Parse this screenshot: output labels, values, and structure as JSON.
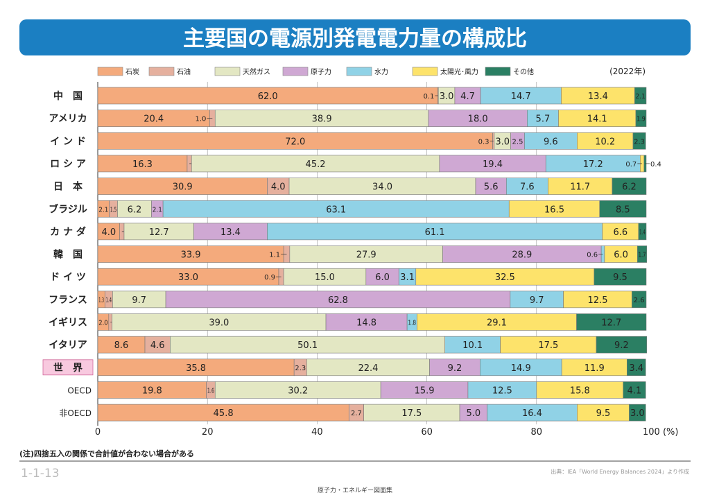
{
  "title": "主要国の電源別発電電力量の構成比",
  "year_label": "(2022年)",
  "note": "(注)四捨五入の関係で合計値が合わない場合がある",
  "figure_number": "1-1-13",
  "source": "出典：IEA「World Energy Balances 2024」より作成",
  "footer": "原子力・エネルギー図面集",
  "chart_data": {
    "type": "bar",
    "orientation": "horizontal",
    "stacked": true,
    "xlim": [
      0,
      100
    ],
    "x_ticks": [
      "0",
      "20",
      "40",
      "60",
      "80",
      "100 (%)"
    ],
    "grid": true,
    "legend_position": "top",
    "categories": [
      "中　国",
      "アメリカ",
      "イ ン ド",
      "ロ シ ア",
      "日　本",
      "ブラジル",
      "カ ナ ダ",
      "韓　国",
      "ド イ ツ",
      "フランス",
      "イギリス",
      "イタリア",
      "世　界",
      "OECD",
      "非OECD"
    ],
    "highlight_category": "世　界",
    "series": [
      {
        "name": "石炭",
        "color": "#f4aa7c",
        "values": [
          62.0,
          20.4,
          72.0,
          16.3,
          30.9,
          2.1,
          4.0,
          33.9,
          33.0,
          1.3,
          2.0,
          8.6,
          35.8,
          19.8,
          45.8
        ]
      },
      {
        "name": "石油",
        "color": "#e5b09e",
        "values": [
          0.1,
          1.0,
          0.3,
          0.8,
          4.0,
          1.5,
          0.8,
          1.1,
          0.9,
          1.4,
          0.6,
          4.6,
          2.3,
          1.6,
          2.7
        ]
      },
      {
        "name": "天然ガス",
        "color": "#e3e7c3",
        "values": [
          3.0,
          38.9,
          3.0,
          45.2,
          34.0,
          6.2,
          12.7,
          27.9,
          15.0,
          9.7,
          39.0,
          50.1,
          22.4,
          30.2,
          17.5
        ]
      },
      {
        "name": "原子力",
        "color": "#cfa8d3",
        "values": [
          4.7,
          18.0,
          2.5,
          19.4,
          5.6,
          2.1,
          13.4,
          28.9,
          6.0,
          62.8,
          14.8,
          0,
          9.2,
          15.9,
          5.0
        ]
      },
      {
        "name": "水力",
        "color": "#90d2e6",
        "values": [
          14.7,
          5.7,
          9.6,
          17.2,
          7.6,
          63.1,
          61.1,
          0.6,
          3.1,
          9.7,
          1.8,
          10.1,
          14.9,
          12.5,
          16.4
        ]
      },
      {
        "name": "太陽光･風力",
        "color": "#fde36b",
        "values": [
          13.4,
          14.1,
          10.2,
          0.7,
          11.7,
          16.5,
          6.6,
          6.0,
          32.5,
          12.5,
          29.1,
          17.5,
          11.9,
          15.8,
          9.5
        ]
      },
      {
        "name": "その他",
        "color": "#2b7f63",
        "values": [
          2.1,
          1.9,
          2.3,
          0.4,
          6.2,
          8.5,
          1.4,
          1.7,
          9.5,
          2.6,
          12.7,
          9.2,
          3.4,
          4.1,
          3.0
        ]
      }
    ]
  },
  "colors": {
    "banner": "#1b7fc2",
    "highlight_bg": "#f8c9df",
    "highlight_border": "#d0679a"
  }
}
